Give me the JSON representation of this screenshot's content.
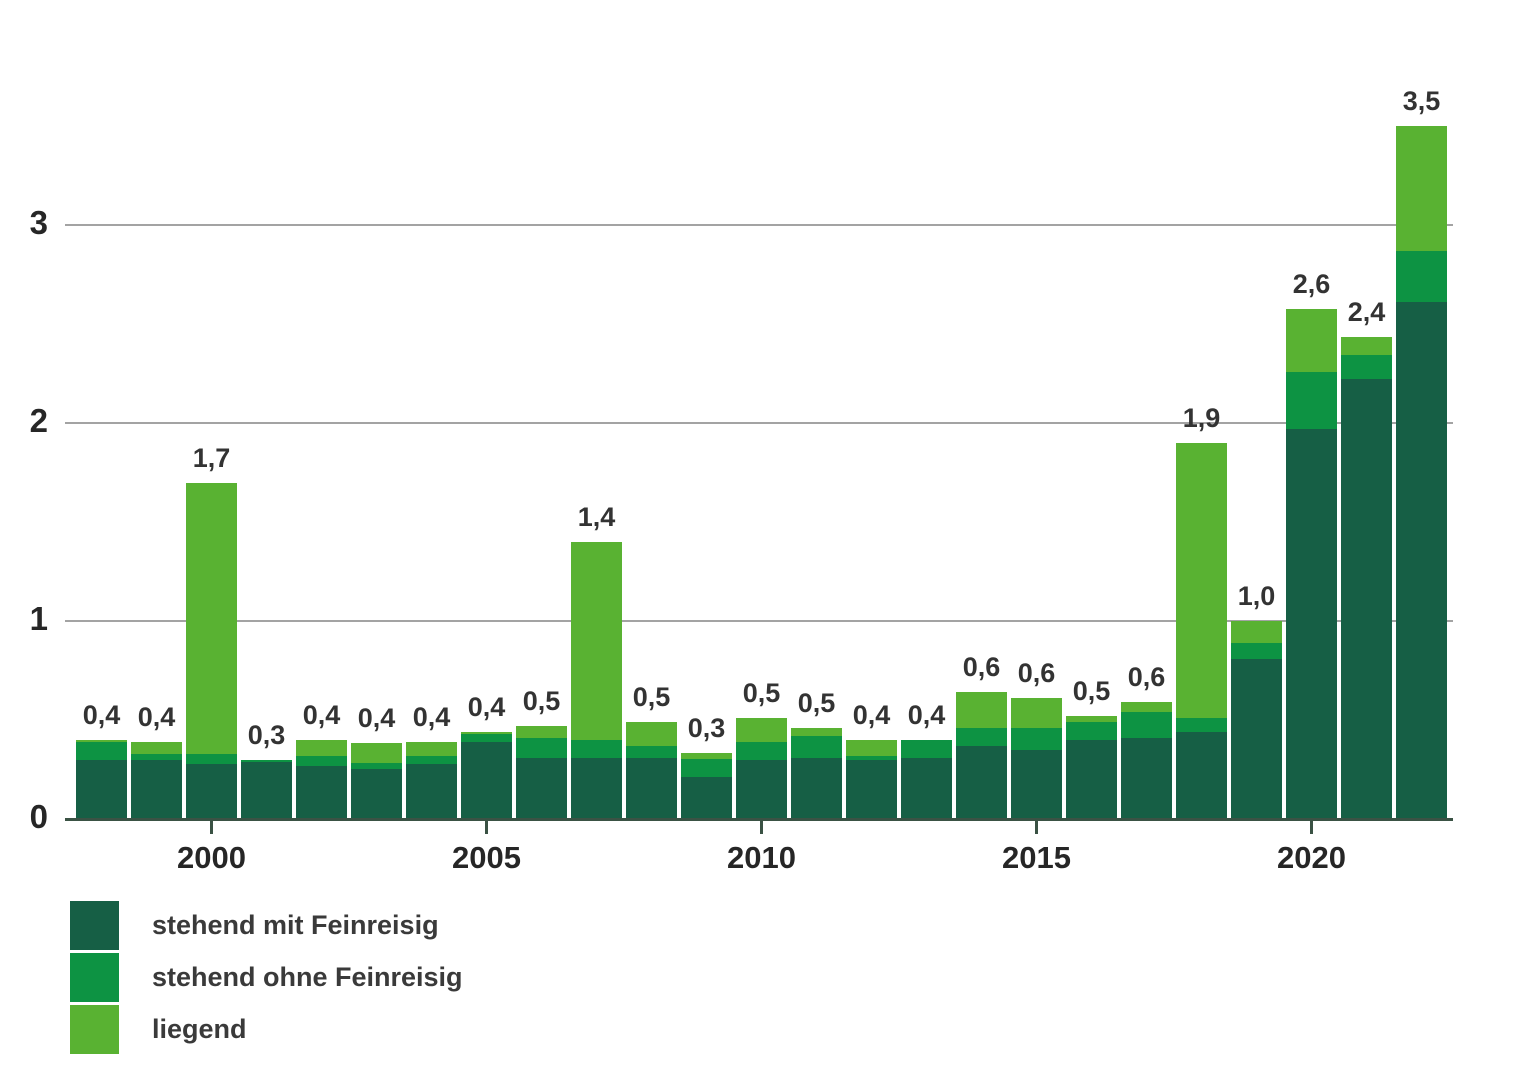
{
  "chart_data": {
    "type": "bar",
    "stacked": true,
    "categories": [
      "1998",
      "1999",
      "2000",
      "2001",
      "2002",
      "2003",
      "2004",
      "2005",
      "2006",
      "2007",
      "2008",
      "2009",
      "2010",
      "2011",
      "2012",
      "2013",
      "2014",
      "2015",
      "2016",
      "2017",
      "2018",
      "2019",
      "2020",
      "2021",
      "2022"
    ],
    "series": [
      {
        "name": "stehend mit Feinreisig",
        "color": "#165f45",
        "values": [
          0.3,
          0.3,
          0.28,
          0.29,
          0.27,
          0.25,
          0.28,
          0.39,
          0.31,
          0.31,
          0.31,
          0.21,
          0.3,
          0.31,
          0.3,
          0.31,
          0.37,
          0.35,
          0.4,
          0.41,
          0.44,
          0.81,
          1.97,
          2.22,
          2.61
        ]
      },
      {
        "name": "stehend ohne Feinreisig",
        "color": "#0d9343",
        "values": [
          0.09,
          0.03,
          0.05,
          0.01,
          0.05,
          0.03,
          0.04,
          0.04,
          0.1,
          0.09,
          0.06,
          0.09,
          0.09,
          0.11,
          0.02,
          0.09,
          0.09,
          0.11,
          0.09,
          0.13,
          0.07,
          0.08,
          0.29,
          0.12,
          0.26
        ]
      },
      {
        "name": "liegend",
        "color": "#59b232",
        "values": [
          0.01,
          0.06,
          1.37,
          0.0,
          0.08,
          0.1,
          0.07,
          0.01,
          0.06,
          1.0,
          0.12,
          0.03,
          0.12,
          0.04,
          0.08,
          0.0,
          0.18,
          0.15,
          0.03,
          0.05,
          1.39,
          0.11,
          0.32,
          0.09,
          0.63
        ]
      }
    ],
    "bar_total_labels": [
      "0,4",
      "0,4",
      "1,7",
      "0,3",
      "0,4",
      "0,4",
      "0,4",
      "0,4",
      "0,5",
      "1,4",
      "0,5",
      "0,3",
      "0,5",
      "0,5",
      "0,4",
      "0,4",
      "0,6",
      "0,6",
      "0,5",
      "0,6",
      "1,9",
      "1,0",
      "2,6",
      "2,4",
      "3,5"
    ],
    "y_ticks": [
      {
        "value": 0,
        "label": "0"
      },
      {
        "value": 1,
        "label": "1"
      },
      {
        "value": 2,
        "label": "2"
      },
      {
        "value": 3,
        "label": "3"
      }
    ],
    "x_ticks": [
      {
        "category_index": 2,
        "label": "2000"
      },
      {
        "category_index": 7,
        "label": "2005"
      },
      {
        "category_index": 12,
        "label": "2010"
      },
      {
        "category_index": 17,
        "label": "2015"
      },
      {
        "category_index": 22,
        "label": "2020"
      }
    ],
    "ylim": [
      0,
      3.63
    ],
    "grid": true,
    "legend_position": "bottom-left",
    "colors": {
      "background": "#ffffff",
      "gridline": "#a3a3a3",
      "axis": "#3a5244",
      "value_label": "#333333",
      "tick_label": "#262626",
      "legend_label": "#3a3a3a"
    }
  }
}
